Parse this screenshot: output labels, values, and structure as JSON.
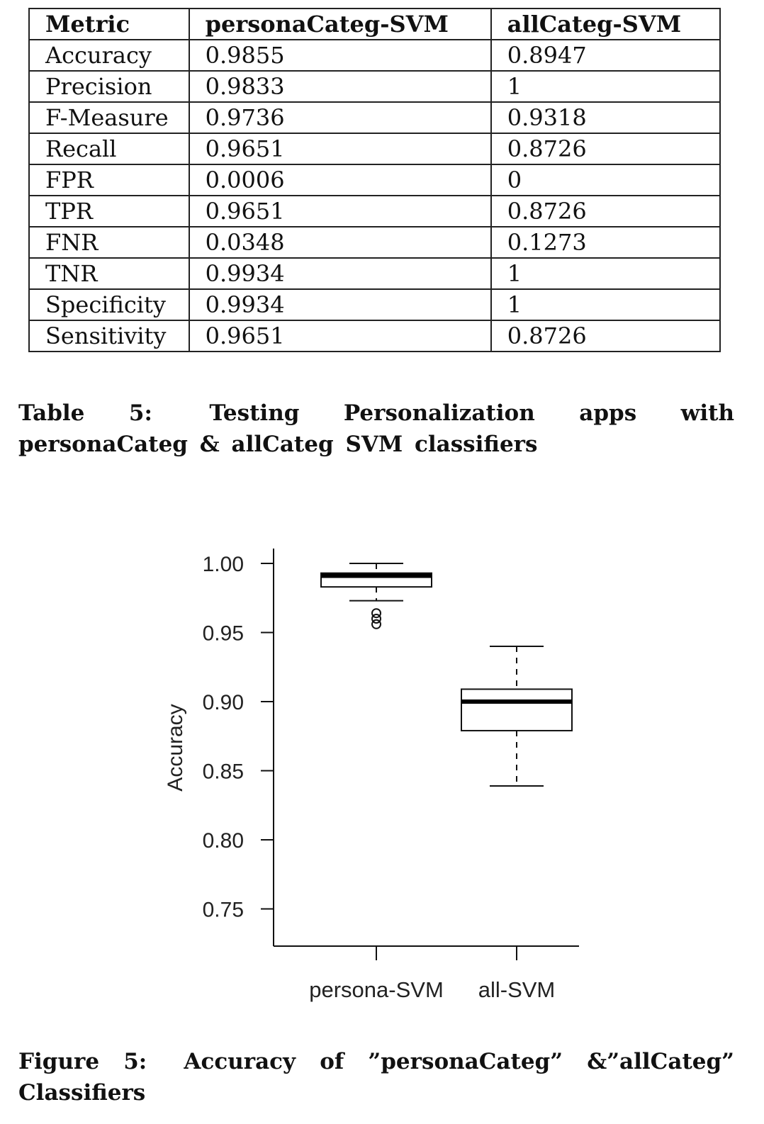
{
  "table": {
    "headers": [
      "Metric",
      "personaCateg-SVM",
      "allCateg-SVM"
    ],
    "rows": [
      [
        "Accuracy",
        "0.9855",
        "0.8947"
      ],
      [
        "Precision",
        "0.9833",
        "1"
      ],
      [
        "F-Measure",
        "0.9736",
        "0.9318"
      ],
      [
        "Recall",
        "0.9651",
        "0.8726"
      ],
      [
        "FPR",
        "0.0006",
        "0"
      ],
      [
        "TPR",
        "0.9651",
        "0.8726"
      ],
      [
        "FNR",
        "0.0348",
        "0.1273"
      ],
      [
        "TNR",
        "0.9934",
        "1"
      ],
      [
        "Specificity",
        "0.9934",
        "1"
      ],
      [
        "Sensitivity",
        "0.9651",
        "0.8726"
      ]
    ],
    "caption_label": "Table 5:",
    "caption_text": "Testing Personalization apps with personaCateg & allCateg SVM classifiers"
  },
  "chart_data": {
    "type": "boxplot",
    "ylabel": "Accuracy",
    "ylim": [
      0.72,
      1.01
    ],
    "yticks": [
      1.0,
      0.95,
      0.9,
      0.85,
      0.8,
      0.75
    ],
    "ytick_labels": [
      "1.00",
      "0.95",
      "0.90",
      "0.85",
      "0.80",
      "0.75"
    ],
    "grid": false,
    "categories": [
      "persona-SVM",
      "all-SVM"
    ],
    "boxes": [
      {
        "category": "persona-SVM",
        "whisker_low": 0.973,
        "q1": 0.983,
        "median": 0.991,
        "q3": 0.993,
        "whisker_high": 1.0,
        "outliers": [
          0.964,
          0.96,
          0.956
        ]
      },
      {
        "category": "all-SVM",
        "whisker_low": 0.839,
        "q1": 0.879,
        "median": 0.9,
        "q3": 0.909,
        "whisker_high": 0.94,
        "outliers": []
      }
    ]
  },
  "figure": {
    "caption_label": "Figure 5:",
    "caption_text": "Accuracy of ”personaCateg” &”allCateg” Classifiers"
  }
}
